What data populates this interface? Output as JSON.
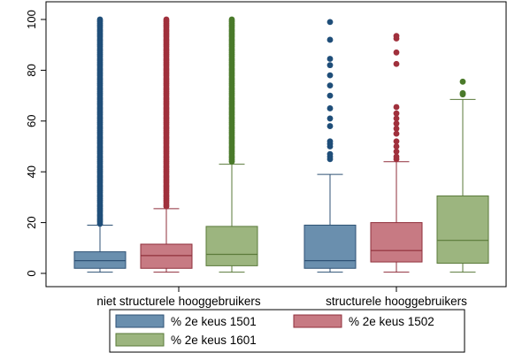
{
  "chart_data": {
    "type": "box",
    "title": "",
    "xlabel": "",
    "ylabel": "",
    "ylim": [
      0,
      100
    ],
    "y_ticks": [
      0,
      20,
      40,
      60,
      80,
      100
    ],
    "grid": false,
    "legend_position": "bottom",
    "groups": [
      "niet structurele hooggebruikers",
      "structurele hooggebruikers"
    ],
    "series": [
      {
        "name": "% 2e keus 1501",
        "color": "#6a8fae",
        "stroke": "#2f5275",
        "outlier_color": "#1f4e79",
        "boxes": [
          {
            "whisker_low": 0.5,
            "q1": 2,
            "median": 5,
            "q3": 8.5,
            "whisker_high": 19,
            "outlier_range": [
              19.5,
              100
            ],
            "outliers": []
          },
          {
            "whisker_low": 0.5,
            "q1": 2,
            "median": 5,
            "q3": 19,
            "whisker_high": 39,
            "outlier_range": null,
            "outliers": [
              45,
              46,
              47,
              50,
              51,
              52,
              58,
              61,
              65,
              70,
              74,
              78,
              82,
              84.5,
              92,
              99
            ]
          }
        ]
      },
      {
        "name": "% 2e keus 1502",
        "color": "#c77a83",
        "stroke": "#8f2f3b",
        "outlier_color": "#a0303c",
        "boxes": [
          {
            "whisker_low": 0.5,
            "q1": 2,
            "median": 7,
            "q3": 11.5,
            "whisker_high": 25.5,
            "outlier_range": [
              26,
              100
            ],
            "outliers": []
          },
          {
            "whisker_low": 0.5,
            "q1": 4.5,
            "median": 9,
            "q3": 20,
            "whisker_high": 44,
            "outlier_range": null,
            "outliers": [
              45,
              46,
              48,
              50,
              52,
              55,
              57,
              59,
              61,
              63,
              65.5,
              82.5,
              87,
              92.5,
              93.5
            ]
          }
        ]
      },
      {
        "name": "% 2e keus 1601",
        "color": "#9cb57f",
        "stroke": "#5a7a3a",
        "outlier_color": "#4a7a2a",
        "boxes": [
          {
            "whisker_low": 0.5,
            "q1": 3,
            "median": 7.5,
            "q3": 18.5,
            "whisker_high": 43,
            "outlier_range": [
              43.5,
              100
            ],
            "outliers": []
          },
          {
            "whisker_low": 0.5,
            "q1": 4,
            "median": 13,
            "q3": 30.5,
            "whisker_high": 68.5,
            "outlier_range": null,
            "outliers": [
              70.5,
              71,
              75.5
            ]
          }
        ]
      }
    ]
  }
}
